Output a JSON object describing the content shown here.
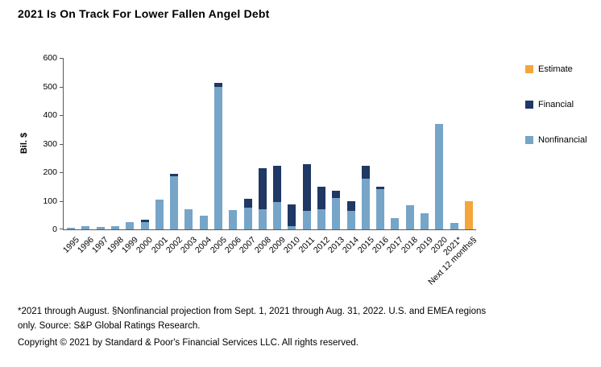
{
  "title": "2021 Is On Track For Lower Fallen Angel Debt",
  "footnote": "*2021 through August. §Nonfinancial projection from Sept. 1, 2021 through Aug. 31, 2022. U.S. and EMEA regions only. Source: S&P Global Ratings Research.",
  "copyright": "Copyright © 2021 by Standard & Poor's Financial Services LLC. All rights reserved.",
  "chart_data": {
    "type": "bar",
    "stacked": true,
    "title": "2021 Is On Track For Lower Fallen Angel Debt",
    "xlabel": "",
    "ylabel": "Bil. $",
    "ylim": [
      0,
      600
    ],
    "yticks": [
      0,
      100,
      200,
      300,
      400,
      500,
      600
    ],
    "grid": false,
    "legend_position": "right",
    "legend": [
      "Estimate",
      "Financial",
      "Nonfinancial"
    ],
    "categories": [
      "1995",
      "1996",
      "1997",
      "1998",
      "1999",
      "2000",
      "2001",
      "2002",
      "2003",
      "2004",
      "2005",
      "2006",
      "2007",
      "2008",
      "2009",
      "2010",
      "2011",
      "2012",
      "2013",
      "2014",
      "2015",
      "2016",
      "2017",
      "2018",
      "2019",
      "2020",
      "2021*",
      "Next 12 months§"
    ],
    "series": [
      {
        "name": "Nonfinancial",
        "color": "#76A5C8",
        "values": [
          5,
          10,
          8,
          12,
          25,
          25,
          105,
          185,
          70,
          48,
          500,
          68,
          75,
          70,
          95,
          12,
          65,
          70,
          110,
          65,
          178,
          140,
          40,
          85,
          55,
          370,
          22,
          0
        ]
      },
      {
        "name": "Financial",
        "color": "#1F3864",
        "values": [
          0,
          0,
          0,
          0,
          0,
          8,
          0,
          10,
          0,
          0,
          12,
          0,
          33,
          145,
          128,
          76,
          163,
          78,
          25,
          35,
          45,
          10,
          0,
          0,
          0,
          0,
          0,
          0
        ]
      },
      {
        "name": "Estimate",
        "color": "#F4A53C",
        "values": [
          0,
          0,
          0,
          0,
          0,
          0,
          0,
          0,
          0,
          0,
          0,
          0,
          0,
          0,
          0,
          0,
          0,
          0,
          0,
          0,
          0,
          0,
          0,
          0,
          0,
          0,
          0,
          100
        ]
      }
    ]
  }
}
